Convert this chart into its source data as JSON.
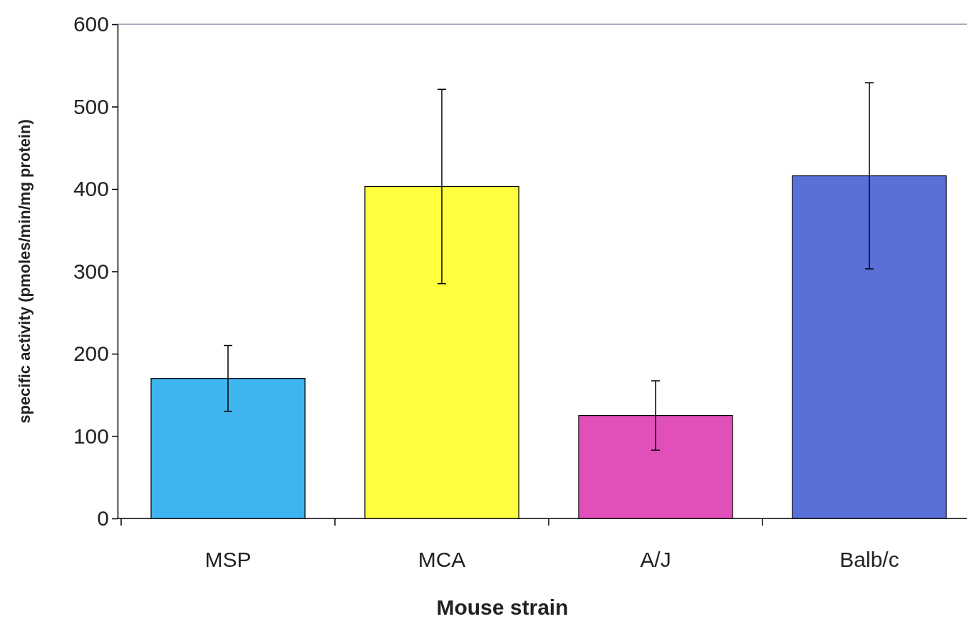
{
  "chart_data": {
    "type": "bar",
    "xlabel": "Mouse strain",
    "ylabel": "specific activity (pmoles/min/mg protein)",
    "categories": [
      "MSP",
      "MCA",
      "A/J",
      "Balb/c"
    ],
    "values": [
      170,
      403,
      125,
      416
    ],
    "colors": [
      "#3fb5f0",
      "#ffff40",
      "#e050b8",
      "#5a6fd8"
    ],
    "errors": [
      40,
      118,
      42,
      113
    ],
    "ylim": [
      0,
      600
    ],
    "yticks": [
      0,
      100,
      200,
      300,
      400,
      500,
      600
    ],
    "grid": false
  }
}
